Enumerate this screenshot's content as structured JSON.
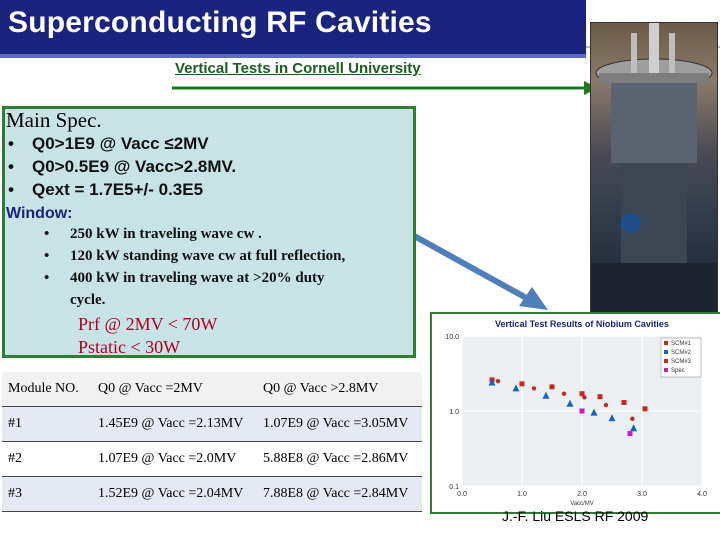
{
  "slide": {
    "title": "Superconducting RF Cavities",
    "subtitle": "Vertical Tests in Cornell University",
    "footer": "J.-F. Liu ESLS RF 2009"
  },
  "main_spec": {
    "heading": "Main Spec.",
    "items": [
      "Q0>1E9 @ Vacc ≤2MV",
      "Q0>0.5E9 @ Vacc>2.8MV.",
      "Qext  = 1.7E5+/- 0.3E5"
    ],
    "window_title": "Window:",
    "window_items": [
      "250 kW in traveling wave cw .",
      "120 kW standing wave cw at full reflection,",
      "400 kW in traveling wave at >20% duty",
      "cycle."
    ],
    "power_lines": [
      "Prf @ 2MV < 70W",
      "Pstatic < 30W"
    ]
  },
  "table": {
    "headers": [
      "Module NO.",
      "Q0 @ Vacc =2MV",
      "Q0 @ Vacc >2.8MV"
    ],
    "rows": [
      [
        "#1",
        "1.45E9 @ Vacc =2.13MV",
        "1.07E9 @ Vacc =3.05MV"
      ],
      [
        "#2",
        "1.07E9 @ Vacc =2.0MV",
        "5.88E8 @ Vacc =2.86MV"
      ],
      [
        "#3",
        "1.52E9 @ Vacc =2.04MV",
        "7.88E8 @ Vacc =2.84MV"
      ]
    ]
  },
  "chart_data": {
    "type": "scatter",
    "title": "Vertical Test Results of Niobium Cavities",
    "xlabel": "Vacc/MV",
    "ylabel": "",
    "xlim": [
      0.0,
      4.0
    ],
    "ylim": [
      0.1,
      10.0
    ],
    "y_scale": "log",
    "xticks": [
      "0.0",
      "1.0",
      "2.0",
      "3.0",
      "4.0"
    ],
    "yticks": [
      "10.0",
      "1.0",
      "0.1"
    ],
    "legend_position": "top-right",
    "grid": true,
    "series": [
      {
        "name": "SCM#1",
        "color": "#c62828",
        "marker": "square",
        "x": [
          0.5,
          1.0,
          1.5,
          2.0,
          2.3,
          2.7,
          3.05
        ],
        "y": [
          2.6,
          2.3,
          2.1,
          1.7,
          1.55,
          1.3,
          1.07
        ]
      },
      {
        "name": "SCM#2",
        "color": "#1565c0",
        "marker": "triangle",
        "x": [
          0.5,
          0.9,
          1.4,
          1.8,
          2.2,
          2.5,
          2.86
        ],
        "y": [
          2.4,
          2.0,
          1.6,
          1.25,
          0.95,
          0.8,
          0.588
        ]
      },
      {
        "name": "SCM#3",
        "color": "#c62828",
        "marker": "dot",
        "x": [
          0.6,
          1.2,
          1.7,
          2.04,
          2.4,
          2.84
        ],
        "y": [
          2.5,
          2.0,
          1.7,
          1.52,
          1.2,
          0.788
        ]
      },
      {
        "name": "Spec",
        "color": "#c51fb4",
        "marker": "square",
        "x": [
          2.0,
          2.8
        ],
        "y": [
          1.0,
          0.5
        ]
      }
    ]
  },
  "colors": {
    "title_bar": "#1a237e",
    "subtitle": "#1b5e20",
    "spec_box": "#c8e3e6",
    "border_green": "#2e7d32",
    "arrow_blue": "#4e7fb8",
    "power_text": "#b00020"
  }
}
